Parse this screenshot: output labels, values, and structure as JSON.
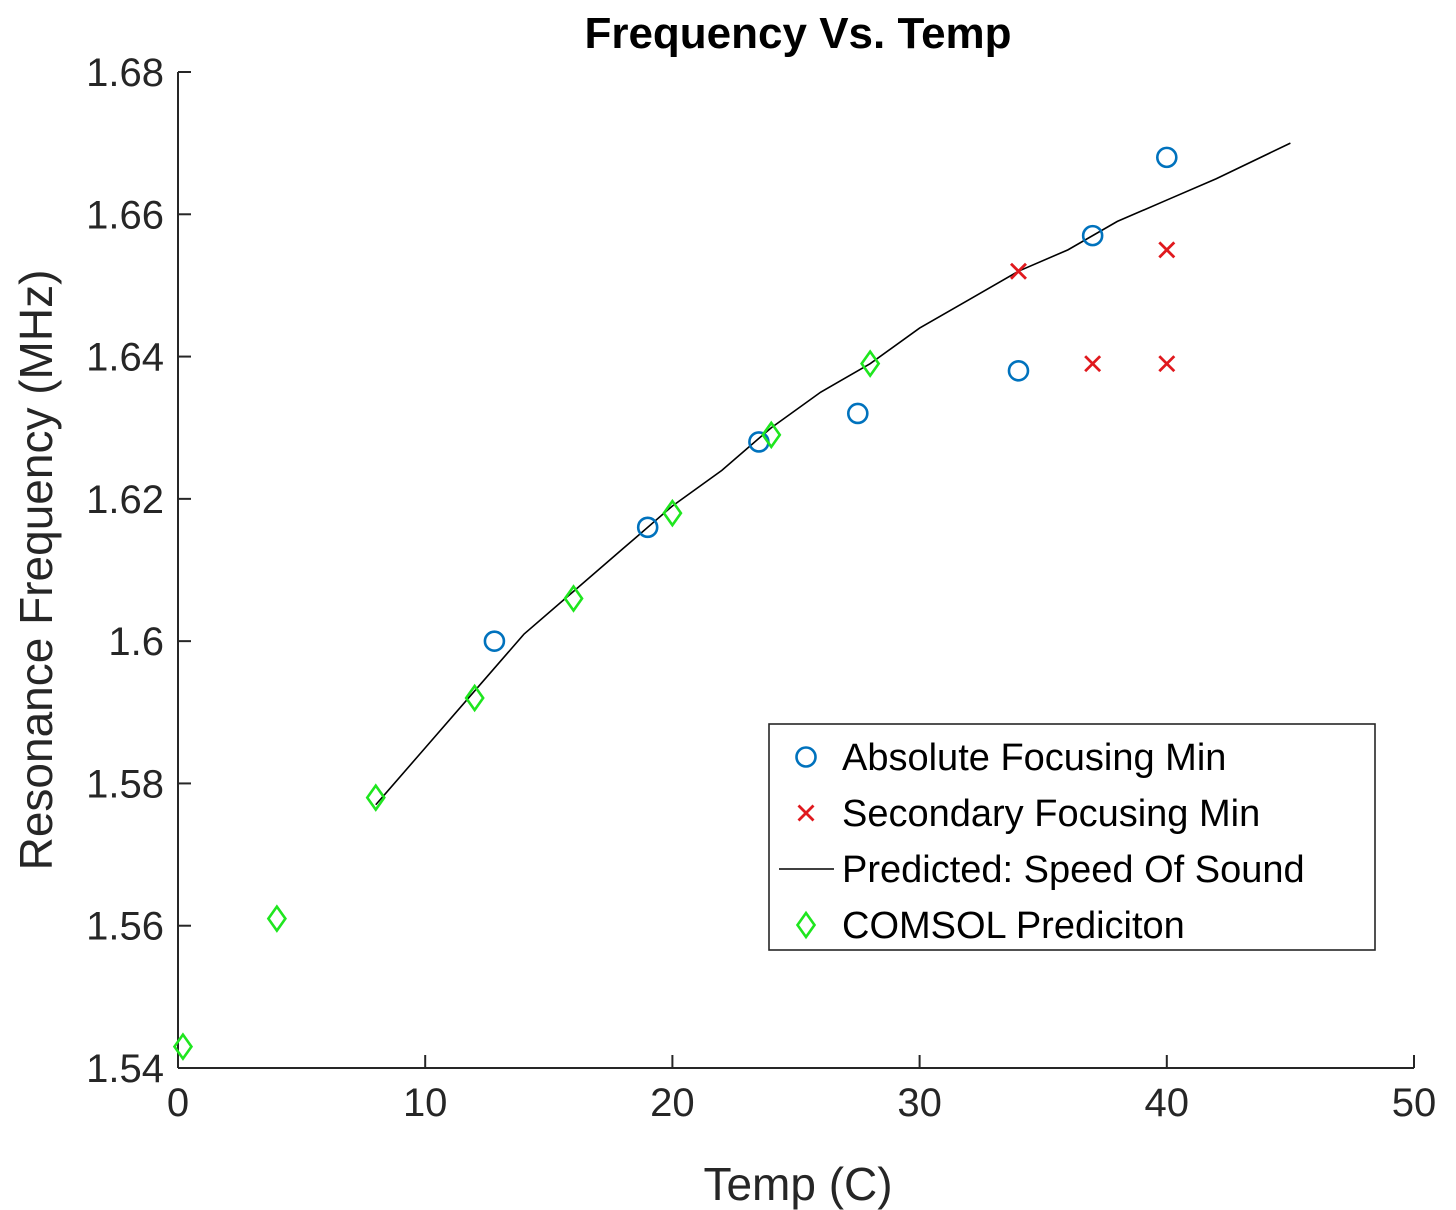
{
  "chart_data": {
    "type": "scatter",
    "title": "Frequency Vs. Temp",
    "xlabel": "Temp (C)",
    "ylabel": "Resonance Frequency (MHz)",
    "xlim": [
      0,
      50
    ],
    "ylim": [
      1.54,
      1.68
    ],
    "xticks": [
      "0",
      "10",
      "20",
      "30",
      "40",
      "50"
    ],
    "yticks": [
      "1.54",
      "1.56",
      "1.58",
      "1.6",
      "1.62",
      "1.64",
      "1.66",
      "1.68"
    ],
    "grid": false,
    "legend_position": "bottom-right",
    "series": [
      {
        "name": "Absolute Focusing Min",
        "marker": "circle",
        "color": "#0072bd",
        "points": [
          [
            12.8,
            1.6
          ],
          [
            19.0,
            1.616
          ],
          [
            23.5,
            1.628
          ],
          [
            27.5,
            1.632
          ],
          [
            34.0,
            1.638
          ],
          [
            37.0,
            1.657
          ],
          [
            40.0,
            1.668
          ]
        ]
      },
      {
        "name": "Secondary Focusing Min",
        "marker": "x",
        "color": "#e0191e",
        "points": [
          [
            34.0,
            1.652
          ],
          [
            37.0,
            1.639
          ],
          [
            40.0,
            1.655
          ],
          [
            40.0,
            1.639
          ]
        ]
      },
      {
        "name": "Predicted: Speed Of Sound",
        "marker": "line",
        "color": "#000000",
        "points": [
          [
            8,
            1.577
          ],
          [
            10,
            1.585
          ],
          [
            12,
            1.593
          ],
          [
            14,
            1.601
          ],
          [
            16,
            1.607
          ],
          [
            18,
            1.613
          ],
          [
            20,
            1.619
          ],
          [
            22,
            1.624
          ],
          [
            24,
            1.63
          ],
          [
            26,
            1.635
          ],
          [
            28,
            1.639
          ],
          [
            30,
            1.644
          ],
          [
            32,
            1.648
          ],
          [
            34,
            1.652
          ],
          [
            36,
            1.655
          ],
          [
            38,
            1.659
          ],
          [
            40,
            1.662
          ],
          [
            42,
            1.665
          ],
          [
            45,
            1.67
          ]
        ]
      },
      {
        "name": "COMSOL Prediciton",
        "marker": "diamond",
        "color": "#1fe61f",
        "points": [
          [
            0.2,
            1.543
          ],
          [
            4.0,
            1.561
          ],
          [
            8.0,
            1.578
          ],
          [
            12.0,
            1.592
          ],
          [
            16.0,
            1.606
          ],
          [
            20.0,
            1.618
          ],
          [
            24.0,
            1.629
          ],
          [
            28.0,
            1.639
          ]
        ]
      }
    ]
  }
}
